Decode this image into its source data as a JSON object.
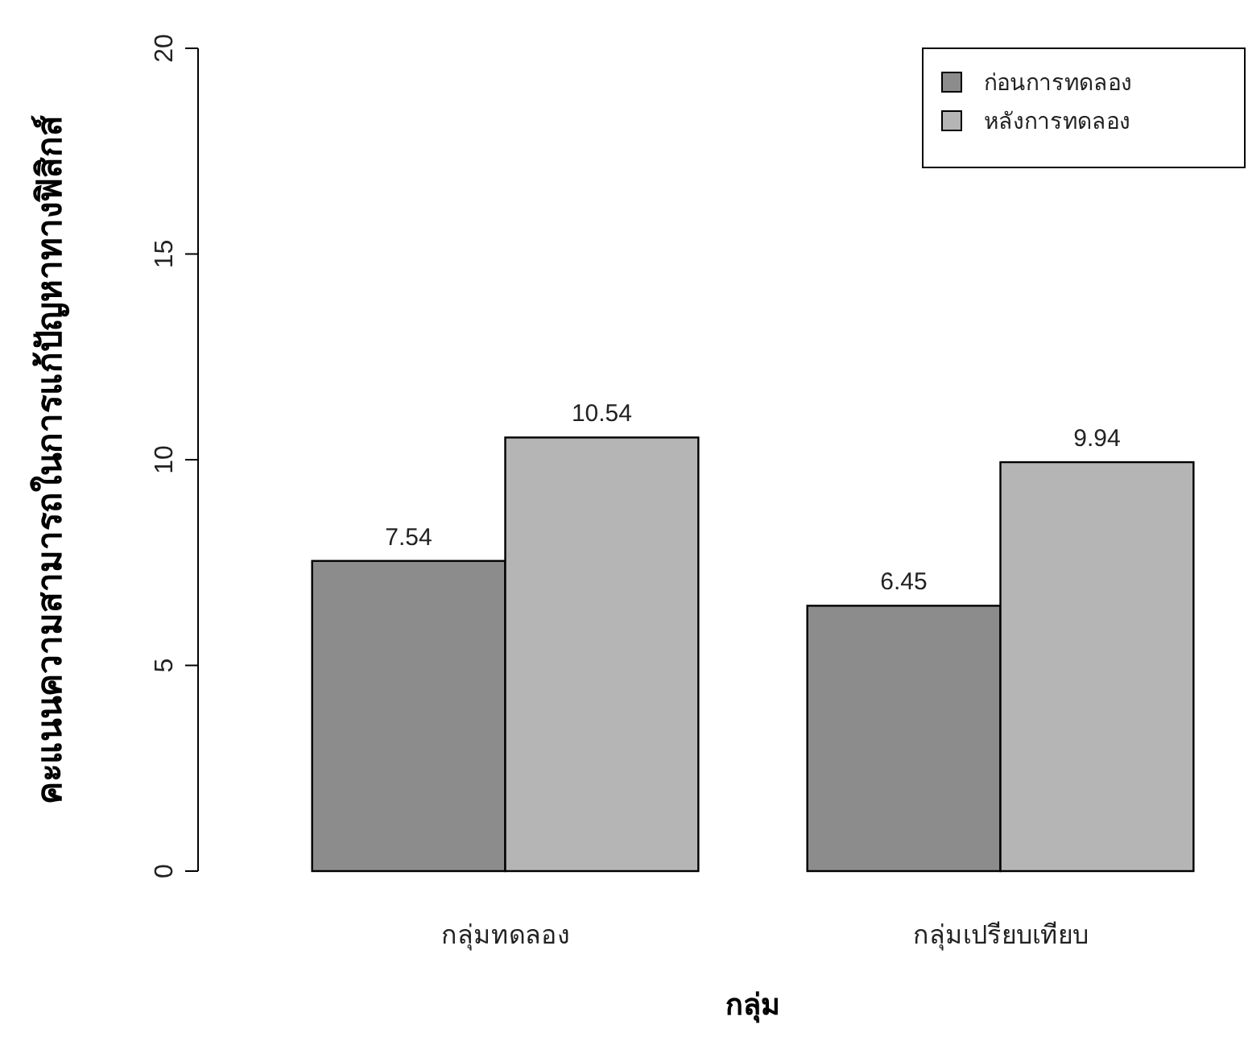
{
  "chart_data": {
    "type": "bar",
    "xlabel": "กลุ่ม",
    "ylabel": "คะแนนความสามารถในการแก้ปัญหาทางฟิสิกส์",
    "categories": [
      "กลุ่มทดลอง",
      "กลุ่มเปรียบเทียบ"
    ],
    "series": [
      {
        "name": "ก่อนการทดลอง",
        "color": "#8c8c8c",
        "values": [
          7.54,
          6.45
        ]
      },
      {
        "name": "หลังการทดลอง",
        "color": "#b5b5b5",
        "values": [
          10.54,
          9.94
        ]
      }
    ],
    "ylim": [
      0,
      20
    ],
    "yticks": [
      0,
      5,
      10,
      15,
      20
    ],
    "data_labels": true,
    "legend": "top right"
  }
}
